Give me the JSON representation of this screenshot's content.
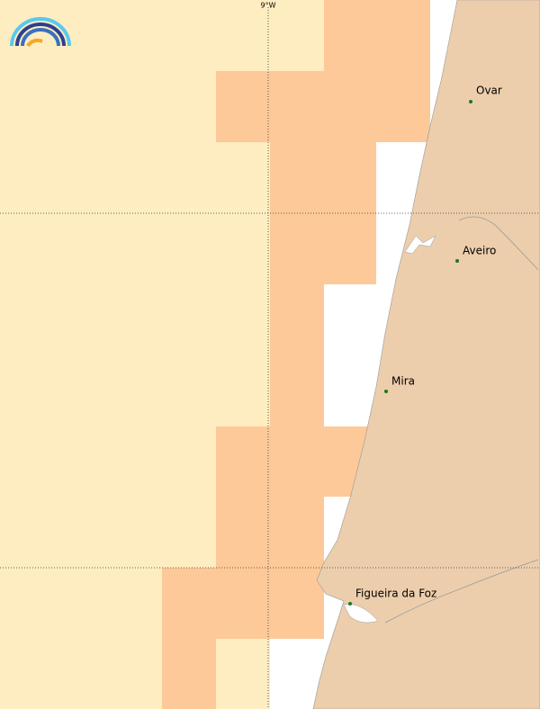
{
  "map": {
    "graticule_label": "9°W",
    "cities": [
      "Ovar",
      "Aveiro",
      "Mira",
      "Figueira da Foz"
    ]
  }
}
